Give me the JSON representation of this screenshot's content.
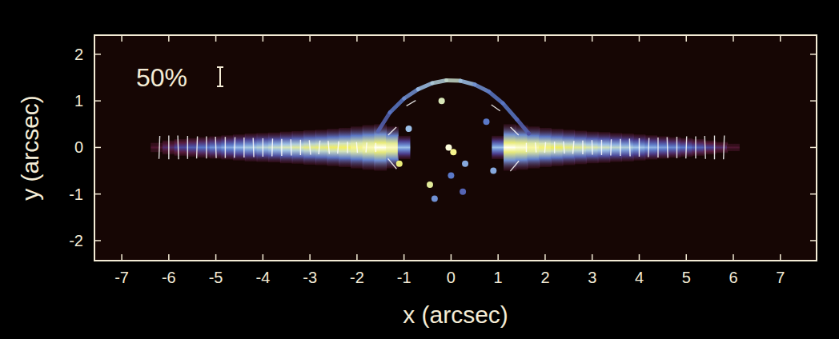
{
  "chart_data": {
    "type": "polarization_map",
    "xlabel": "x (arcsec)",
    "ylabel": "y (arcsec)",
    "xlim": [
      -7.58,
      7.77
    ],
    "ylim": [
      -2.43,
      2.41
    ],
    "xticks": [
      -7,
      -6,
      -5,
      -4,
      -3,
      -2,
      -1,
      0,
      1,
      2,
      3,
      4,
      5,
      6,
      7
    ],
    "yticks": [
      -2,
      -1,
      0,
      1,
      2
    ],
    "scale_bar": {
      "label": "50%",
      "value": 50
    },
    "disk": {
      "x": [
        -6.25,
        -6,
        -5.75,
        -5.5,
        -5.25,
        -5,
        -4.75,
        -4.5,
        -4.25,
        -4,
        -3.75,
        -3.5,
        -3.25,
        -3,
        -2.75,
        -2.5,
        -2.25,
        -2,
        -1.75,
        -1.5,
        -1.25,
        -1,
        1,
        1.25,
        1.5,
        1.75,
        2,
        2.25,
        2.5,
        2.75,
        3,
        3.25,
        3.5,
        3.75,
        4,
        4.25,
        4.5,
        4.75,
        5,
        5.25,
        5.5,
        5.75,
        6
      ],
      "intensity": [
        0.1,
        0.2,
        0.28,
        0.34,
        0.4,
        0.45,
        0.5,
        0.54,
        0.58,
        0.62,
        0.66,
        0.7,
        0.74,
        0.78,
        0.8,
        0.83,
        0.86,
        0.9,
        0.94,
        1.0,
        0.95,
        0.55,
        0.55,
        1.0,
        0.97,
        0.92,
        0.88,
        0.84,
        0.8,
        0.76,
        0.72,
        0.68,
        0.64,
        0.6,
        0.56,
        0.52,
        0.48,
        0.44,
        0.4,
        0.35,
        0.28,
        0.2,
        0.1
      ],
      "half_height": [
        0.1,
        0.15,
        0.18,
        0.2,
        0.22,
        0.24,
        0.26,
        0.28,
        0.3,
        0.31,
        0.32,
        0.34,
        0.35,
        0.37,
        0.38,
        0.4,
        0.42,
        0.45,
        0.48,
        0.5,
        0.45,
        0.25,
        0.25,
        0.5,
        0.48,
        0.45,
        0.42,
        0.4,
        0.38,
        0.36,
        0.34,
        0.33,
        0.31,
        0.3,
        0.28,
        0.26,
        0.24,
        0.22,
        0.2,
        0.18,
        0.15,
        0.12,
        0.08
      ]
    },
    "arc": {
      "x": [
        -1.55,
        -1.3,
        -1.0,
        -0.7,
        -0.4,
        -0.1,
        0.2,
        0.5,
        0.8,
        1.1,
        1.4,
        1.65
      ],
      "y": [
        0.35,
        0.75,
        1.05,
        1.25,
        1.38,
        1.44,
        1.43,
        1.35,
        1.2,
        0.95,
        0.6,
        0.3
      ],
      "intensity": [
        0.35,
        0.4,
        0.45,
        0.55,
        0.6,
        0.65,
        0.55,
        0.45,
        0.4,
        0.4,
        0.35,
        0.3
      ]
    },
    "knots": {
      "x": [
        -1.1,
        -0.9,
        -0.45,
        -0.35,
        -0.05,
        0.05,
        0.0,
        0.3,
        -0.2,
        0.25,
        0.9,
        0.75
      ],
      "y": [
        -0.35,
        0.4,
        -0.8,
        -1.1,
        0.0,
        -0.1,
        -0.6,
        -0.35,
        1.0,
        -0.95,
        -0.5,
        0.55
      ],
      "intensity": [
        0.8,
        0.55,
        0.75,
        0.45,
        0.98,
        0.9,
        0.4,
        0.5,
        0.7,
        0.35,
        0.5,
        0.4
      ]
    },
    "vectors": {
      "x": [
        -6.2,
        -6.0,
        -5.8,
        -5.6,
        -5.4,
        -5.2,
        -5.0,
        -4.8,
        -4.6,
        -4.4,
        -4.2,
        -4.0,
        -3.8,
        -3.6,
        -3.4,
        -3.2,
        -3.0,
        -2.8,
        -2.6,
        -2.4,
        -2.2,
        -2.0,
        -1.8,
        -1.6,
        1.6,
        1.8,
        2.0,
        2.2,
        2.4,
        2.6,
        2.8,
        3.0,
        3.2,
        3.4,
        3.6,
        3.8,
        4.0,
        4.2,
        4.4,
        4.6,
        4.8,
        5.0,
        5.2,
        5.4,
        5.6,
        5.8,
        -1.25,
        -1.25,
        -0.85,
        1.35,
        1.35,
        0.95
      ],
      "y": [
        0,
        0,
        0,
        0,
        0,
        0,
        0,
        0,
        0,
        0,
        0,
        0,
        0,
        0,
        0,
        0,
        0,
        0,
        0,
        0,
        0,
        0,
        0,
        0,
        0,
        0,
        0,
        0,
        0,
        0,
        0,
        0,
        0,
        0,
        0,
        0,
        0,
        0,
        0,
        0,
        0,
        0,
        0,
        0,
        0,
        0,
        0.35,
        -0.35,
        0.95,
        0.35,
        -0.4,
        0.85
      ],
      "p": [
        60,
        62,
        62,
        60,
        58,
        58,
        56,
        55,
        54,
        52,
        50,
        48,
        46,
        44,
        42,
        40,
        38,
        36,
        34,
        32,
        30,
        28,
        26,
        24,
        24,
        26,
        28,
        30,
        32,
        34,
        36,
        38,
        40,
        42,
        44,
        46,
        48,
        50,
        52,
        54,
        56,
        58,
        58,
        60,
        62,
        62,
        30,
        35,
        28,
        30,
        35,
        28
      ],
      "angle": [
        88,
        90,
        92,
        90,
        88,
        90,
        92,
        90,
        88,
        90,
        92,
        90,
        88,
        90,
        92,
        90,
        95,
        85,
        95,
        85,
        90,
        95,
        85,
        90,
        90,
        95,
        85,
        90,
        95,
        85,
        90,
        92,
        90,
        88,
        90,
        92,
        90,
        88,
        90,
        92,
        90,
        88,
        90,
        92,
        90,
        88,
        45,
        -50,
        30,
        -45,
        50,
        -35
      ]
    }
  }
}
